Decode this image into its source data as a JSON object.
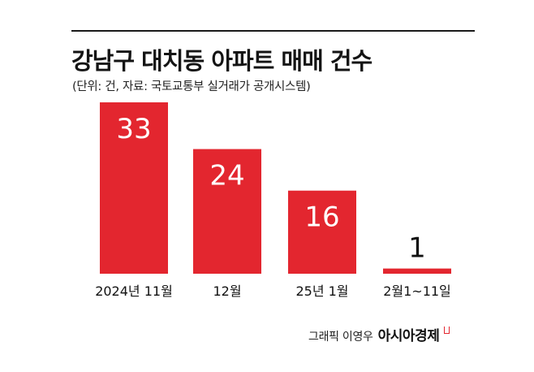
{
  "title": "강남구 대치동 아파트 매매 건수",
  "subtitle": "(단위: 건, 자료: 국토교통부 실거래가 공개시스템)",
  "credit": {
    "text": "그래픽 이영우",
    "brand": "아시아경제"
  },
  "colors": {
    "bar": "#e3262f",
    "label_inside": "#ffffff",
    "label_outside": "#111111"
  },
  "chart_data": {
    "type": "bar",
    "title": "강남구 대치동 아파트 매매 건수",
    "subtitle": "(단위: 건, 자료: 국토교통부 실거래가 공개시스템)",
    "categories": [
      "2024년 11월",
      "12월",
      "25년 1월",
      "2월1~11일"
    ],
    "values": [
      33,
      24,
      16,
      1
    ],
    "data_labels": [
      "33",
      "24",
      "16",
      "1"
    ],
    "ylim": [
      0,
      33
    ],
    "xlabel": "",
    "ylabel": "",
    "grid": false,
    "legend": "none"
  }
}
